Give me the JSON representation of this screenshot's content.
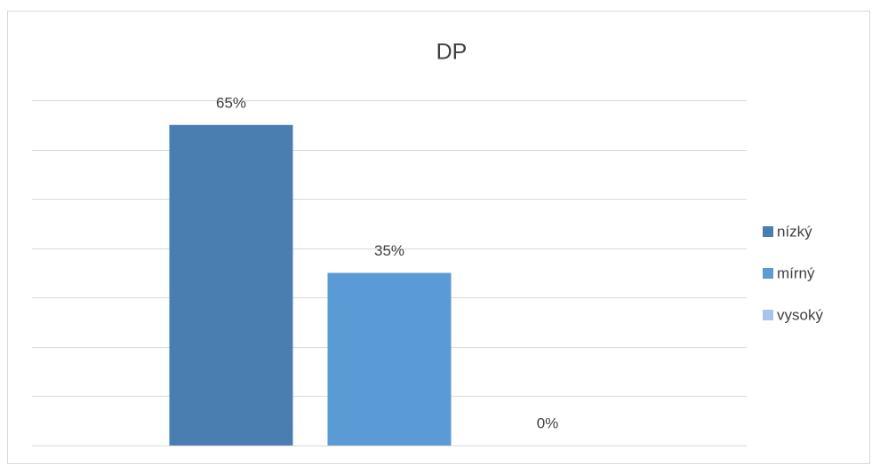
{
  "chart_data": {
    "type": "bar",
    "title": "DP",
    "series": [
      {
        "name": "nízký",
        "color": "#4a7eb0",
        "values": [
          65
        ],
        "value_labels": [
          "65%"
        ]
      },
      {
        "name": "mírný",
        "color": "#5b9bd5",
        "values": [
          35
        ],
        "value_labels": [
          "35%"
        ]
      },
      {
        "name": "vysoký",
        "color": "#a9c4e8",
        "values": [
          0
        ],
        "value_labels": [
          "0%"
        ]
      }
    ],
    "ylim": [
      0,
      70
    ],
    "yticks": [
      0,
      10,
      20,
      30,
      40,
      50,
      60,
      70
    ],
    "grid": true,
    "legend": "right"
  }
}
